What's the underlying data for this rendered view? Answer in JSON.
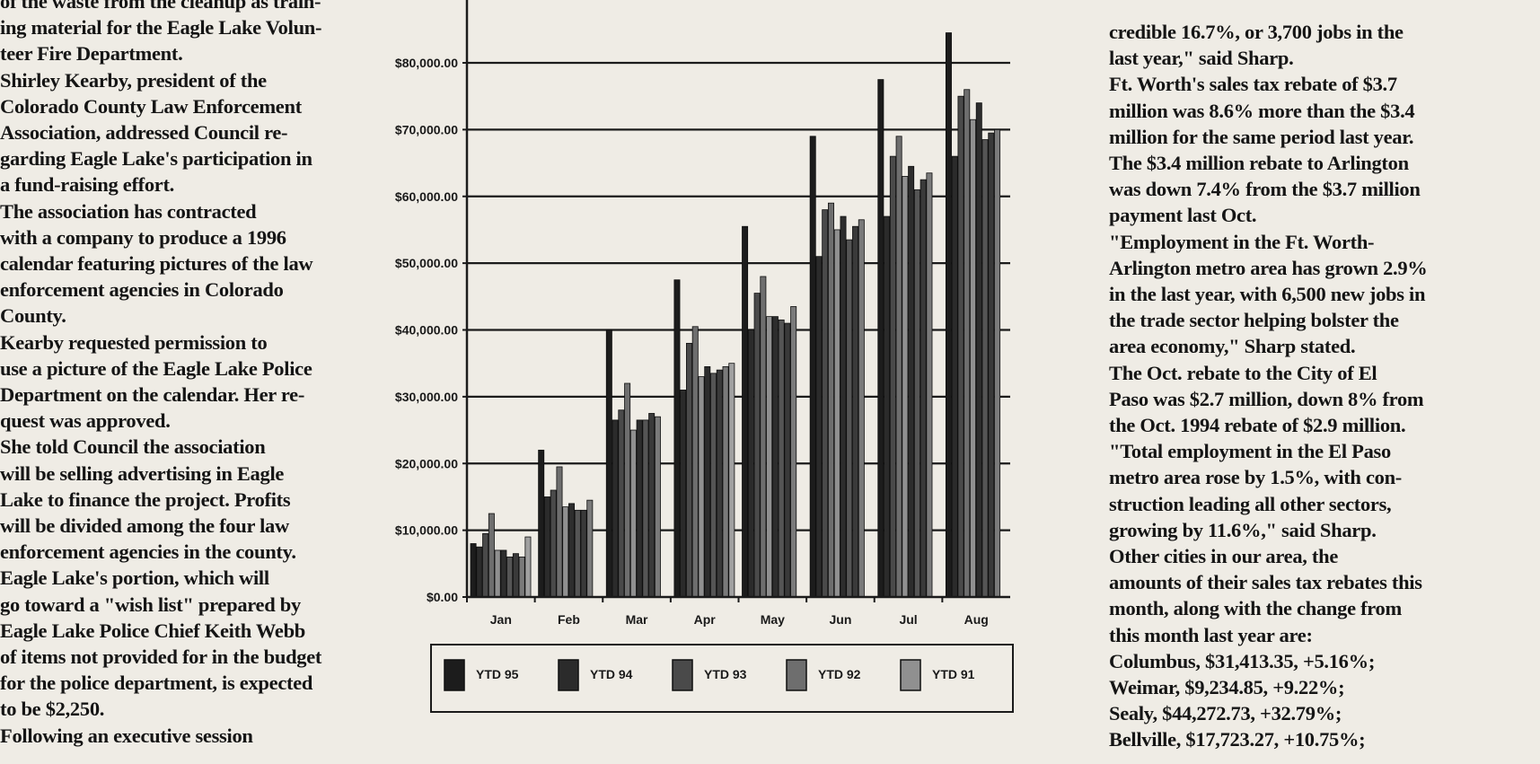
{
  "left_column": {
    "lines": [
      "of the waste from the cleanup as train-",
      "ing material for the Eagle Lake Volun-",
      "teer Fire Department.",
      "    Shirley Kearby, president of the",
      "Colorado County Law Enforcement",
      "Association, addressed Council re-",
      "garding Eagle Lake's participation in",
      "a fund-raising effort.",
      "    The association has contracted",
      "with a company to produce a 1996",
      "calendar featuring pictures of the law",
      "enforcement agencies in Colorado",
      "County.",
      "    Kearby requested permission to",
      "use a picture of the Eagle Lake Police",
      "Department on the calendar. Her re-",
      "quest was approved.",
      "    She told Council the association",
      "will be selling advertising in Eagle",
      "Lake to finance the project. Profits",
      "will be divided among the four law",
      "enforcement agencies in the county.",
      "    Eagle Lake's portion, which will",
      "go toward a \"wish list\" prepared by",
      "Eagle Lake Police Chief Keith Webb",
      "of items not provided for in the budget",
      "for the police department, is expected",
      "to be $2,250.",
      "    Following an executive session"
    ]
  },
  "right_column": {
    "lines": [
      "credible 16.7%, or 3,700 jobs in the",
      "last year,\" said Sharp.",
      "    Ft. Worth's sales tax rebate of $3.7",
      "million was 8.6% more than the $3.4",
      "million for the same period last year.",
      "The $3.4 million rebate to Arlington",
      "was down 7.4% from the $3.7 million",
      "payment last Oct.",
      "    \"Employment in the Ft. Worth-",
      "Arlington metro area has grown 2.9%",
      "in the last year, with 6,500 new jobs in",
      "the trade sector helping bolster the",
      "area economy,\" Sharp stated.",
      "    The Oct. rebate to the City of El",
      "Paso was $2.7 million, down 8% from",
      "the Oct. 1994 rebate of $2.9 million.",
      "    \"Total employment in the El Paso",
      "metro area rose by 1.5%, with con-",
      "struction leading all other sectors,",
      "growing by 11.6%,\" said Sharp.",
      "    Other cities in our area, the",
      "amounts of their sales tax rebates this",
      "month, along with the change from",
      "this month last year are:",
      "Columbus, $31,413.35, +5.16%;",
      "Weimar, $9,234.85, +9.22%;",
      "Sealy, $44,272.73, +32.79%;",
      "Bellville, $17,723.27, +10.75%;"
    ]
  },
  "chart_data": {
    "type": "bar",
    "ylim": [
      0,
      80000
    ],
    "y_ticks": [
      0,
      10000,
      20000,
      30000,
      40000,
      50000,
      60000,
      70000,
      80000
    ],
    "y_tick_labels": [
      "$0.00",
      "$10,000.00",
      "$20,000.00",
      "$30,000.00",
      "$40,000.00",
      "$50,000.00",
      "$60,000.00",
      "$70,000.00",
      "$80,000.00"
    ],
    "categories": [
      "Jan",
      "Feb",
      "Mar",
      "Apr",
      "May",
      "Jun",
      "Jul",
      "Aug"
    ],
    "bars_per_month": 10,
    "legend_position": "bottom",
    "legend": [
      "YTD 95",
      "YTD 94",
      "YTD 93",
      "YTD 92",
      "YTD 91"
    ],
    "series": [
      {
        "name": "YTD 95",
        "color": "#1c1c1c",
        "values": [
          8000,
          22000,
          40000,
          47500,
          55500,
          69000,
          77500,
          84500
        ]
      },
      {
        "name": "YTD 94",
        "color": "#2b2b2b",
        "values": [
          7500,
          15000,
          26500,
          31000,
          40000,
          51000,
          57000,
          66000
        ]
      },
      {
        "name": "YTD 93",
        "color": "#4a4a4a",
        "values": [
          9500,
          16000,
          28000,
          38000,
          45500,
          58000,
          66000,
          75000
        ]
      },
      {
        "name": "YTD 92",
        "color": "#6e6e6e",
        "values": [
          12500,
          19500,
          32000,
          40500,
          48000,
          59000,
          69000,
          76000
        ]
      },
      {
        "name": "YTD 91",
        "color": "#909090",
        "values": [
          7000,
          13500,
          25000,
          33000,
          42000,
          55000,
          63000,
          71500
        ]
      },
      {
        "name": "",
        "color": "#2d2d2d",
        "values": [
          7000,
          14000,
          26500,
          34500,
          42000,
          57000,
          64500,
          74000
        ]
      },
      {
        "name": "",
        "color": "#555555",
        "values": [
          6000,
          13000,
          26500,
          33500,
          41500,
          53500,
          61000,
          68500
        ]
      },
      {
        "name": "",
        "color": "#3a3a3a",
        "values": [
          6500,
          13000,
          27500,
          34000,
          41000,
          55500,
          62500,
          69500
        ]
      },
      {
        "name": "",
        "color": "#7a7a7a",
        "values": [
          6000,
          14500,
          27000,
          34500,
          43500,
          56500,
          63500,
          70000
        ]
      },
      {
        "name": "",
        "color": "#a0a0a0",
        "values": [
          9000,
          0,
          0,
          35000,
          0,
          0,
          0,
          0
        ]
      }
    ]
  }
}
